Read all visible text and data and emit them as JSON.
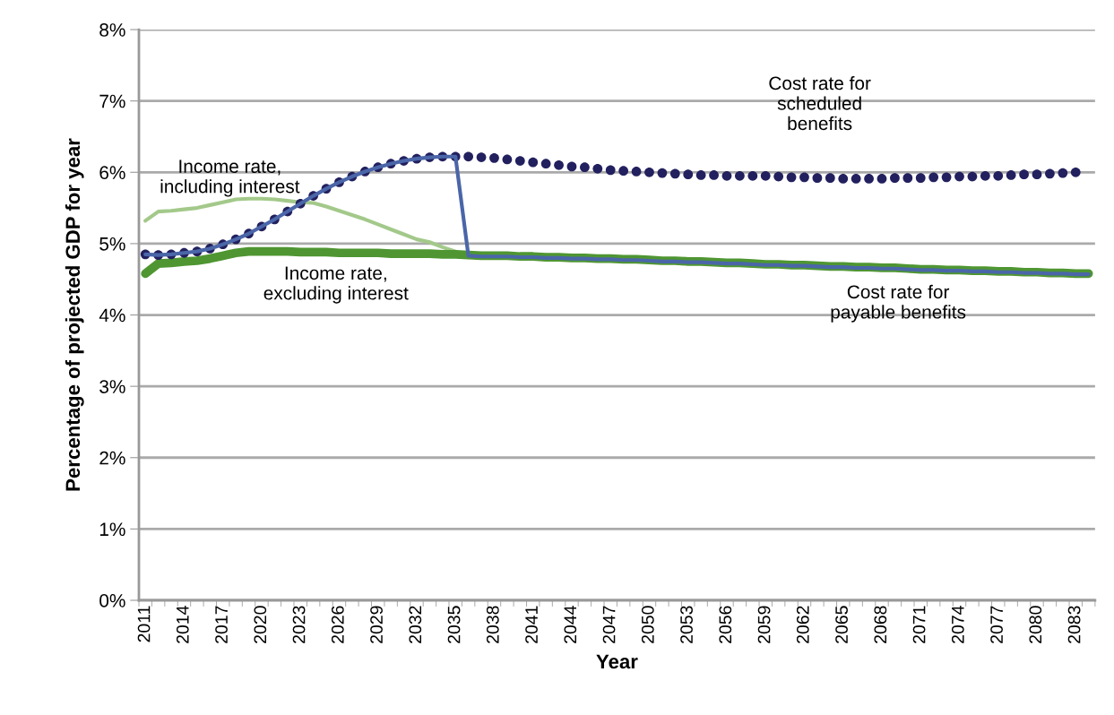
{
  "chart_data": {
    "type": "line",
    "xlabel": "Year",
    "ylabel": "Percentage of projected GDP for year",
    "categories": [
      "2011",
      null,
      null,
      "2014",
      null,
      null,
      "2017",
      null,
      null,
      "2020",
      null,
      null,
      "2023",
      null,
      null,
      "2026",
      null,
      null,
      "2029",
      null,
      null,
      "2032",
      null,
      null,
      "2035",
      null,
      null,
      "2038",
      null,
      null,
      "2041",
      null,
      null,
      "2044",
      null,
      null,
      "2047",
      null,
      null,
      "2050",
      null,
      null,
      "2053",
      null,
      null,
      "2056",
      null,
      null,
      "2059",
      null,
      null,
      "2062",
      null,
      null,
      "2065",
      null,
      null,
      "2068",
      null,
      null,
      "2071",
      null,
      null,
      "2074",
      null,
      null,
      "2077",
      null,
      null,
      "2080",
      null,
      null,
      "2083",
      null
    ],
    "ylim": [
      0,
      8
    ],
    "yticks": [
      {
        "value": 0,
        "label": "0%"
      },
      {
        "value": 1,
        "label": "1%"
      },
      {
        "value": 2,
        "label": "2%"
      },
      {
        "value": 3,
        "label": "3%"
      },
      {
        "value": 4,
        "label": "4%"
      },
      {
        "value": 5,
        "label": "5%"
      },
      {
        "value": 6,
        "label": "6%"
      },
      {
        "value": 7,
        "label": "7%"
      },
      {
        "value": 8,
        "label": "8%"
      }
    ],
    "grid": "y",
    "legend": false,
    "series": [
      {
        "name": "Income rate,\nincluding interest",
        "color": "#a3c98a",
        "values": [
          5.32,
          5.45,
          5.46,
          5.48,
          5.5,
          5.54,
          5.58,
          5.62,
          5.63,
          5.63,
          5.62,
          5.6,
          5.58,
          5.57,
          5.52,
          5.46,
          5.4,
          5.34,
          5.27,
          5.2,
          5.13,
          5.06,
          5.02,
          4.95,
          4.89,
          4.83,
          null,
          null,
          null,
          null,
          null,
          null,
          null,
          null,
          null,
          null,
          null,
          null,
          null,
          null,
          null,
          null,
          null,
          null,
          null,
          null,
          null,
          null,
          null,
          null,
          null,
          null,
          null,
          null,
          null,
          null,
          null,
          null,
          null,
          null,
          null,
          null,
          null,
          null,
          null,
          null,
          null,
          null,
          null,
          null,
          null,
          null,
          null,
          null
        ]
      },
      {
        "name": "Income rate,\nexcluding interest",
        "color": "#4f9632",
        "values": [
          4.58,
          4.72,
          4.73,
          4.75,
          4.76,
          4.79,
          4.83,
          4.87,
          4.89,
          4.89,
          4.89,
          4.89,
          4.88,
          4.88,
          4.88,
          4.87,
          4.87,
          4.87,
          4.87,
          4.86,
          4.86,
          4.86,
          4.86,
          4.85,
          4.85,
          4.84,
          4.83,
          4.83,
          4.83,
          4.82,
          4.82,
          4.81,
          4.81,
          4.8,
          4.8,
          4.79,
          4.79,
          4.78,
          4.78,
          4.77,
          4.76,
          4.76,
          4.75,
          4.75,
          4.74,
          4.73,
          4.73,
          4.72,
          4.71,
          4.71,
          4.7,
          4.7,
          4.69,
          4.68,
          4.68,
          4.67,
          4.67,
          4.66,
          4.66,
          4.65,
          4.64,
          4.64,
          4.63,
          4.63,
          4.62,
          4.62,
          4.61,
          4.61,
          4.6,
          4.6,
          4.59,
          4.59,
          4.58,
          4.58
        ]
      },
      {
        "name": "Cost rate for\nscheduled\nbenefits",
        "type": "scatter",
        "marker": "circle",
        "color": "#22205e",
        "values": [
          4.85,
          4.84,
          4.85,
          4.87,
          4.89,
          4.93,
          4.99,
          5.06,
          5.14,
          5.24,
          5.34,
          5.45,
          5.56,
          5.67,
          5.77,
          5.86,
          5.94,
          6.01,
          6.07,
          6.12,
          6.16,
          6.19,
          6.21,
          6.22,
          6.22,
          6.22,
          6.21,
          6.2,
          6.18,
          6.16,
          6.14,
          6.12,
          6.1,
          6.08,
          6.07,
          6.05,
          6.03,
          6.02,
          6.01,
          6.0,
          5.99,
          5.98,
          5.97,
          5.96,
          5.96,
          5.95,
          5.95,
          5.95,
          5.95,
          5.94,
          5.93,
          5.93,
          5.92,
          5.92,
          5.91,
          5.91,
          5.91,
          5.91,
          5.92,
          5.92,
          5.92,
          5.93,
          5.93,
          5.94,
          5.94,
          5.95,
          5.95,
          5.96,
          5.97,
          5.97,
          5.98,
          5.99,
          6.0,
          null
        ]
      },
      {
        "name": "Cost rate for\npayable benefits",
        "color": "#4a66a8",
        "values": [
          4.85,
          4.84,
          4.85,
          4.87,
          4.89,
          4.93,
          4.99,
          5.06,
          5.14,
          5.24,
          5.34,
          5.45,
          5.56,
          5.67,
          5.77,
          5.86,
          5.94,
          6.01,
          6.07,
          6.12,
          6.16,
          6.19,
          6.21,
          6.22,
          6.22,
          4.83,
          4.82,
          4.82,
          4.82,
          4.81,
          4.81,
          4.8,
          4.8,
          4.79,
          4.79,
          4.78,
          4.78,
          4.77,
          4.77,
          4.76,
          4.75,
          4.75,
          4.74,
          4.74,
          4.73,
          4.72,
          4.72,
          4.71,
          4.7,
          4.7,
          4.69,
          4.69,
          4.68,
          4.67,
          4.67,
          4.66,
          4.66,
          4.65,
          4.65,
          4.64,
          4.63,
          4.63,
          4.62,
          4.62,
          4.61,
          4.61,
          4.6,
          4.6,
          4.59,
          4.59,
          4.58,
          4.58,
          4.57,
          4.57
        ]
      }
    ]
  }
}
